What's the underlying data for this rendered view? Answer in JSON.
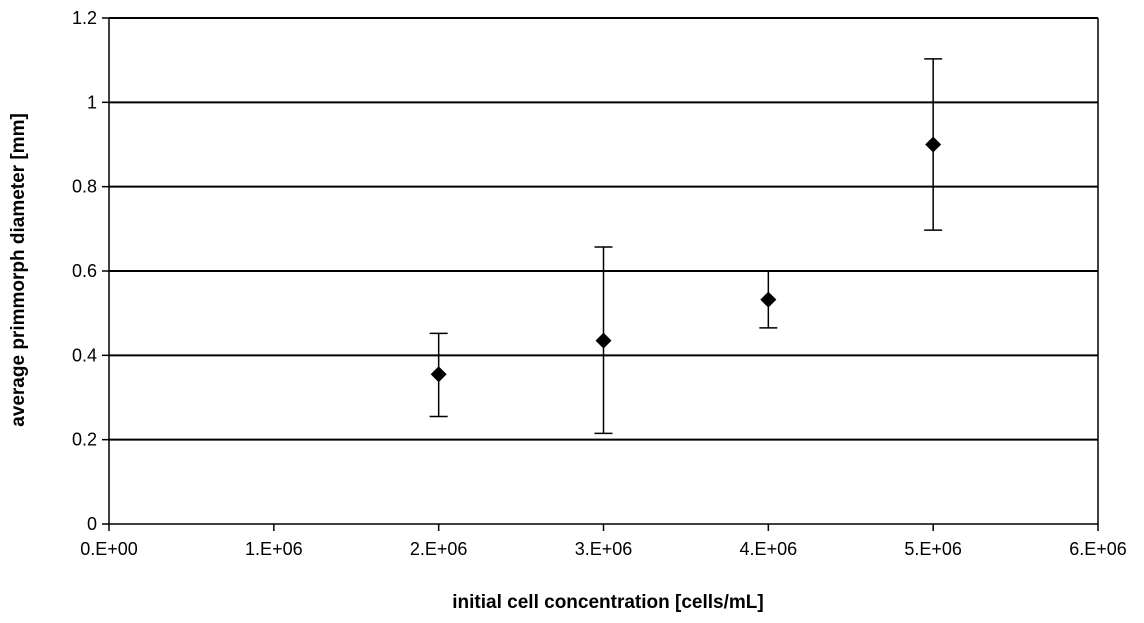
{
  "chart_data": {
    "type": "scatter",
    "title": "",
    "xlabel": "initial cell concentration [cells/mL]",
    "ylabel": "average primmorph diameter [mm]",
    "xlim": [
      0,
      6000000
    ],
    "ylim": [
      0,
      1.2
    ],
    "x_ticks": [
      0,
      1000000,
      2000000,
      3000000,
      4000000,
      5000000,
      6000000
    ],
    "x_tick_labels": [
      "0.E+00",
      "1.E+06",
      "2.E+06",
      "3.E+06",
      "4.E+06",
      "5.E+06",
      "6.E+06"
    ],
    "y_ticks": [
      0,
      0.2,
      0.4,
      0.6,
      0.8,
      1.0,
      1.2
    ],
    "y_tick_labels": [
      "0",
      "0.2",
      "0.4",
      "0.6",
      "0.8",
      "1",
      "1.2"
    ],
    "grid": "horizontal",
    "legend": "none",
    "marker": "diamond",
    "marker_color": "#000000",
    "points": [
      {
        "x": 2000000,
        "y": 0.355,
        "err_low": 0.255,
        "err_high": 0.452
      },
      {
        "x": 3000000,
        "y": 0.435,
        "err_low": 0.215,
        "err_high": 0.657
      },
      {
        "x": 4000000,
        "y": 0.532,
        "err_low": 0.465,
        "err_high": 0.6
      },
      {
        "x": 5000000,
        "y": 0.9,
        "err_low": 0.697,
        "err_high": 1.103
      }
    ]
  }
}
